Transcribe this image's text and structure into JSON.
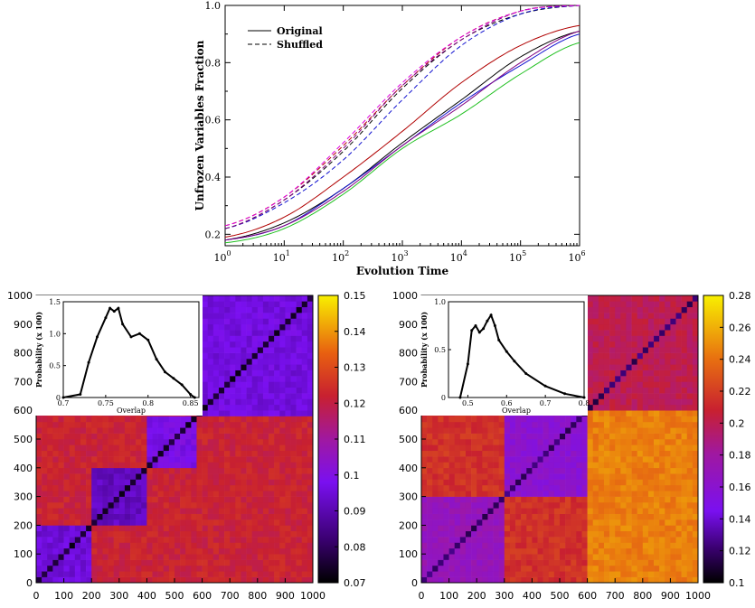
{
  "colors": {
    "black": "#000000",
    "red": "#b00000",
    "blue": "#1010d0",
    "purple": "#800080",
    "green": "#20c020",
    "magenta": "#e000e0",
    "diag": "#5050f0"
  },
  "chart_data": [
    {
      "type": "line",
      "xlabel": "Evolution Time",
      "ylabel": "Unfrozen Variables Fraction",
      "xscale": "log",
      "xlim": [
        1,
        1000000
      ],
      "ylim": [
        0.16,
        1.0
      ],
      "xticks": [
        "0",
        "1",
        "2",
        "3",
        "4",
        "5",
        "6"
      ],
      "yticks": [
        "0.2",
        "0.4",
        "0.6",
        "0.8",
        "1.0"
      ],
      "legend": {
        "placement": "top-left",
        "entries": [
          "Original",
          "Shuffled"
        ]
      },
      "grid": false,
      "x": [
        1,
        10,
        100,
        1000,
        10000,
        100000,
        1000000
      ],
      "series": [
        {
          "style": "solid",
          "color": "black",
          "values": [
            0.18,
            0.24,
            0.36,
            0.52,
            0.67,
            0.82,
            0.91
          ]
        },
        {
          "style": "solid",
          "color": "red",
          "values": [
            0.19,
            0.26,
            0.4,
            0.56,
            0.73,
            0.86,
            0.93
          ]
        },
        {
          "style": "solid",
          "color": "blue",
          "values": [
            0.18,
            0.23,
            0.36,
            0.51,
            0.66,
            0.79,
            0.9
          ]
        },
        {
          "style": "solid",
          "color": "purple",
          "values": [
            0.18,
            0.23,
            0.35,
            0.51,
            0.65,
            0.8,
            0.91
          ]
        },
        {
          "style": "solid",
          "color": "green",
          "values": [
            0.17,
            0.22,
            0.34,
            0.5,
            0.62,
            0.76,
            0.87
          ]
        },
        {
          "style": "dashed",
          "color": "black",
          "values": [
            0.22,
            0.32,
            0.49,
            0.71,
            0.88,
            0.97,
            1.0
          ]
        },
        {
          "style": "dashed",
          "color": "red",
          "values": [
            0.23,
            0.33,
            0.51,
            0.72,
            0.89,
            0.98,
            1.0
          ]
        },
        {
          "style": "dashed",
          "color": "blue",
          "values": [
            0.22,
            0.31,
            0.46,
            0.67,
            0.86,
            0.97,
            1.0
          ]
        },
        {
          "style": "dashed",
          "color": "purple",
          "values": [
            0.22,
            0.32,
            0.5,
            0.72,
            0.88,
            0.98,
            1.0
          ]
        },
        {
          "style": "dashed",
          "color": "magenta",
          "values": [
            0.23,
            0.33,
            0.52,
            0.73,
            0.89,
            0.98,
            1.0
          ]
        }
      ]
    },
    {
      "type": "heatmap",
      "xlim": [
        0,
        1000
      ],
      "ylim": [
        0,
        1000
      ],
      "xticks": [
        "0",
        "100",
        "200",
        "300",
        "400",
        "500",
        "600",
        "700",
        "800",
        "900",
        "1000"
      ],
      "yticks": [
        "0",
        "100",
        "200",
        "300",
        "400",
        "500",
        "600",
        "700",
        "800",
        "900",
        "1000"
      ],
      "colorbar": {
        "min": 0.07,
        "max": 0.15,
        "ticks": [
          "0.07",
          "0.08",
          "0.09",
          "0.1",
          "0.11",
          "0.12",
          "0.13",
          "0.14",
          "0.15"
        ]
      },
      "blocks": [
        {
          "from": 0,
          "to": 200,
          "value": 0.095
        },
        {
          "from": 200,
          "to": 400,
          "value": 0.092
        },
        {
          "from": 400,
          "to": 580,
          "value": 0.098
        },
        {
          "from": 580,
          "to": 1000,
          "value": 0.096
        }
      ],
      "off_block_value": 0.122,
      "diagonal_value": 0.075,
      "inset": {
        "type": "line",
        "xlabel": "Overlap",
        "ylabel": "Probability (x 100)",
        "xlim": [
          0.7,
          0.86
        ],
        "ylim": [
          0,
          1.5
        ],
        "xticks": [
          "0.7",
          "0.75",
          "0.8",
          "0.85"
        ],
        "yticks": [
          "0",
          "0.5",
          "1.0",
          "1.5"
        ],
        "x": [
          0.7,
          0.72,
          0.73,
          0.74,
          0.75,
          0.755,
          0.76,
          0.765,
          0.77,
          0.78,
          0.79,
          0.8,
          0.81,
          0.82,
          0.83,
          0.84,
          0.85,
          0.855
        ],
        "values": [
          0.0,
          0.05,
          0.55,
          0.95,
          1.25,
          1.4,
          1.35,
          1.4,
          1.15,
          0.95,
          1.0,
          0.9,
          0.6,
          0.4,
          0.3,
          0.2,
          0.05,
          0.0
        ]
      }
    },
    {
      "type": "heatmap",
      "xlim": [
        0,
        1000
      ],
      "ylim": [
        0,
        1000
      ],
      "xticks": [
        "0",
        "100",
        "200",
        "300",
        "400",
        "500",
        "600",
        "700",
        "800",
        "900",
        "1000"
      ],
      "yticks": [
        "0",
        "100",
        "200",
        "300",
        "400",
        "500",
        "600",
        "700",
        "800",
        "900",
        "1000"
      ],
      "colorbar": {
        "min": 0.1,
        "max": 0.28,
        "ticks": [
          "0.1",
          "0.12",
          "0.14",
          "0.16",
          "0.18",
          "0.2",
          "0.22",
          "0.24",
          "0.26",
          "0.28"
        ]
      },
      "blocks": [
        {
          "from": 0,
          "to": 300,
          "value": 0.17
        },
        {
          "from": 300,
          "to": 600,
          "value": 0.16
        },
        {
          "from": 600,
          "to": 1000,
          "value": 0.2
        }
      ],
      "off_block_value": 0.215,
      "high_region": {
        "x": [
          600,
          1000
        ],
        "y": [
          0,
          600
        ],
        "value": 0.245
      },
      "diagonal_value": 0.12,
      "inset": {
        "type": "line",
        "xlabel": "Overlap",
        "ylabel": "Probability (x 100)",
        "xlim": [
          0.45,
          0.8
        ],
        "ylim": [
          0,
          1.0
        ],
        "xticks": [
          "0.5",
          "0.6",
          "0.7",
          "0.8"
        ],
        "yticks": [
          "0",
          "0.5",
          "1.0"
        ],
        "x": [
          0.48,
          0.5,
          0.51,
          0.52,
          0.53,
          0.54,
          0.55,
          0.56,
          0.57,
          0.58,
          0.6,
          0.62,
          0.65,
          0.7,
          0.75,
          0.8
        ],
        "values": [
          0.0,
          0.35,
          0.7,
          0.75,
          0.68,
          0.72,
          0.8,
          0.86,
          0.75,
          0.6,
          0.48,
          0.38,
          0.25,
          0.12,
          0.04,
          0.0
        ]
      }
    }
  ]
}
